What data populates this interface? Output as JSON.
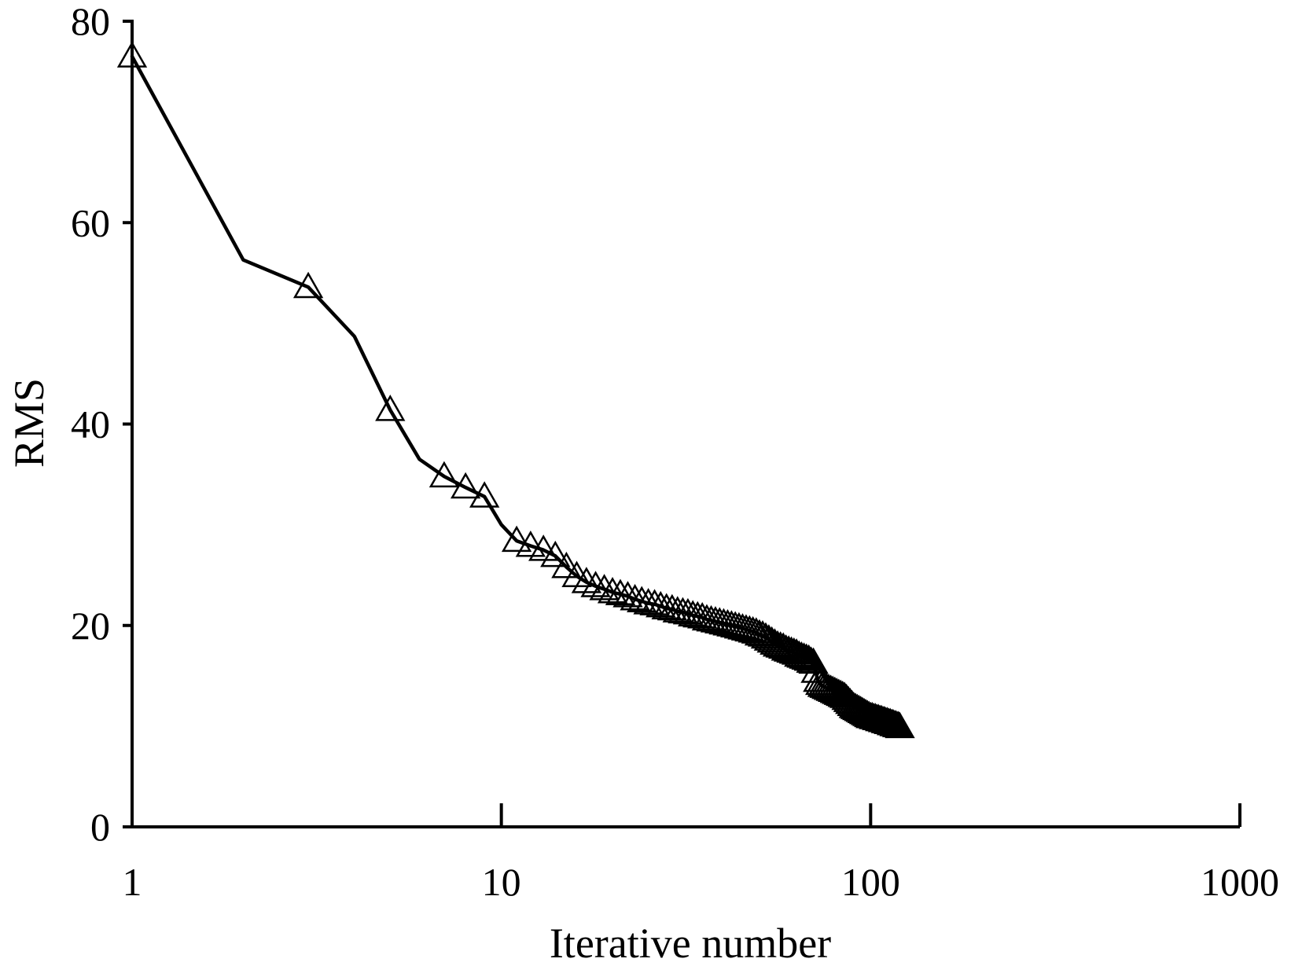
{
  "chart_data": {
    "type": "line",
    "title": "",
    "xlabel": "Iterative number",
    "ylabel": "RMS",
    "x_scale": "log",
    "xlim": [
      1,
      1000
    ],
    "ylim": [
      0,
      80
    ],
    "x_ticks": [
      1,
      10,
      100,
      1000
    ],
    "x_tick_labels": [
      "1",
      "10",
      "100",
      "1000"
    ],
    "y_ticks": [
      0,
      20,
      40,
      60,
      80
    ],
    "y_tick_labels": [
      "0",
      "20",
      "40",
      "60",
      "80"
    ],
    "grid": false,
    "legend": "none",
    "series": [
      {
        "line_color": "#000000",
        "marker": "open-triangle",
        "x": [
          1,
          2,
          3,
          4,
          5,
          6,
          7,
          8,
          9,
          10,
          11,
          12,
          13,
          14,
          15,
          16,
          17,
          18,
          19,
          20,
          21,
          22,
          23,
          24,
          25,
          26,
          27,
          28,
          29,
          30,
          31,
          32,
          33,
          34,
          35,
          36,
          37,
          38,
          39,
          40,
          41,
          42,
          43,
          44,
          45,
          46,
          47,
          48,
          49,
          50,
          51,
          52,
          53,
          54,
          55,
          56,
          57,
          58,
          59,
          60,
          61,
          62,
          63,
          64,
          65,
          66,
          67,
          68,
          69,
          70,
          71,
          72,
          73,
          74,
          75,
          76,
          77,
          78,
          79,
          80,
          81,
          82,
          83,
          84,
          85,
          86,
          87,
          88,
          89,
          90,
          91,
          92,
          93,
          94,
          95,
          96,
          97,
          98,
          99,
          100,
          101,
          102,
          103,
          104,
          105,
          106,
          107,
          108,
          109,
          110,
          111,
          112,
          113,
          114,
          115,
          116,
          117,
          118,
          119,
          120
        ],
        "y": [
          76.5,
          56.3,
          53.6,
          48.7,
          41.4,
          36.5,
          34.8,
          33.7,
          32.8,
          30.0,
          28.4,
          27.9,
          27.5,
          26.9,
          25.8,
          24.9,
          24.3,
          23.9,
          23.6,
          23.3,
          23.1,
          22.9,
          22.6,
          22.4,
          22.2,
          22.1,
          21.9,
          21.7,
          21.6,
          21.4,
          21.3,
          21.2,
          21.0,
          20.9,
          20.8,
          20.6,
          20.5,
          20.4,
          20.3,
          20.2,
          20.1,
          20.0,
          19.9,
          19.8,
          19.7,
          19.6,
          19.5,
          19.4,
          19.3,
          19.1,
          19.0,
          18.8,
          18.6,
          18.4,
          18.2,
          18.0,
          17.9,
          17.8,
          17.6,
          17.5,
          17.4,
          17.3,
          17.2,
          17.0,
          16.9,
          16.8,
          16.7,
          16.6,
          16.4,
          16.3,
          15.4,
          14.5,
          14.2,
          14.0,
          13.9,
          13.8,
          13.7,
          13.6,
          13.5,
          13.4,
          13.3,
          13.2,
          13.1,
          13.0,
          12.9,
          12.7,
          12.5,
          12.3,
          12.1,
          11.9,
          11.8,
          11.7,
          11.6,
          11.5,
          11.4,
          11.3,
          11.2,
          11.1,
          11.0,
          10.9,
          10.9,
          10.8,
          10.8,
          10.7,
          10.7,
          10.6,
          10.6,
          10.5,
          10.5,
          10.4,
          10.4,
          10.3,
          10.3,
          10.2,
          10.2,
          10.1,
          10.1,
          10.0,
          10.0,
          9.9
        ]
      }
    ]
  }
}
